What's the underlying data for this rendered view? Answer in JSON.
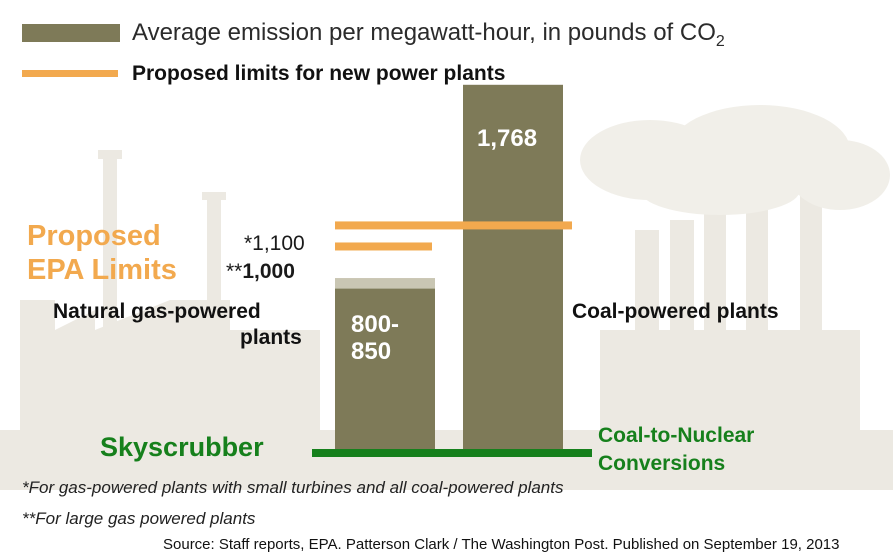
{
  "legend": {
    "bar_label": "Average emission per megawatt-hour, in pounds of CO",
    "bar_label_subscript": "2",
    "line_label": "Proposed limits for new power plants"
  },
  "annotations": {
    "epa_line1": "Proposed",
    "epa_line2": "EPA Limits",
    "limit_1100": "*1,100",
    "limit_1000_stars": "**",
    "limit_1000_value": "1,000",
    "gas_line1": "Natural gas-powered",
    "gas_line2": "plants",
    "coal": "Coal-powered plants",
    "gas_value_line1": "800-",
    "gas_value_line2": "850",
    "coal_value": "1,768",
    "skyscrubber": "Skyscrubber",
    "coal_nuclear_line1": "Coal-to-Nuclear",
    "coal_nuclear_line2": "Conversions"
  },
  "footnotes": {
    "note1_star": "*",
    "note1_text": "For gas-powered plants with small turbines and all coal-powered plants",
    "note2_star": "**",
    "note2_text": "For large gas powered plants"
  },
  "source": "Source: Staff reports, EPA. Patterson Clark / The Washington Post. Published on September 19, 2013",
  "colors": {
    "bar": "#7e7a58",
    "bar_cap": "#c9c6b3",
    "limit_line": "#f2a94e",
    "green_line": "#16801c",
    "background_silhouette": "#ece9e2"
  },
  "chart_data": {
    "type": "bar",
    "categories": [
      "Natural gas-powered plants",
      "Coal-powered plants"
    ],
    "values": [
      850,
      1768
    ],
    "range_low": [
      800,
      null
    ],
    "value_labels": [
      "800-850",
      "1,768"
    ],
    "ylim": [
      0,
      1900
    ],
    "reference_lines": [
      {
        "value": 1100,
        "label": "*1,100",
        "spans": "both bars"
      },
      {
        "value": 1000,
        "label": "**1,000",
        "spans": "gas bar"
      }
    ],
    "grid": false,
    "legend": "top-left"
  }
}
